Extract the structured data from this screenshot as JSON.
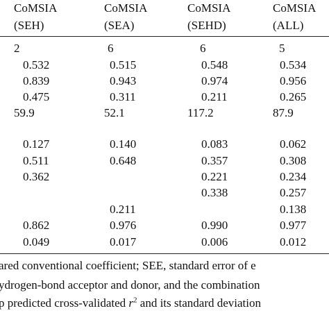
{
  "table": {
    "header": [
      [
        "CoMSIA",
        "(SEH)"
      ],
      [
        "CoMSIA",
        "(SEA)"
      ],
      [
        "CoMSIA",
        "(SEHD)"
      ],
      [
        "CoMSIA",
        "(ALL)"
      ]
    ],
    "rows": [
      [
        "2",
        "6",
        "6",
        "5"
      ],
      [
        "0.532",
        "0.515",
        "0.548",
        "0.534"
      ],
      [
        "0.839",
        "0.943",
        "0.974",
        "0.956"
      ],
      [
        "0.475",
        "0.311",
        "0.211",
        "0.265"
      ],
      [
        "59.9",
        "52.1",
        "117.2",
        "87.9"
      ],
      [
        "0.127",
        "0.140",
        "0.083",
        "0.062"
      ],
      [
        "0.511",
        "0.648",
        "0.357",
        "0.308"
      ],
      [
        "0.362",
        null,
        "0.221",
        "0.234"
      ],
      [
        null,
        null,
        "0.338",
        "0.257"
      ],
      [
        null,
        "0.211",
        null,
        "0.138"
      ],
      [
        "0.862",
        "0.976",
        "0.990",
        "0.977"
      ],
      [
        "0.049",
        "0.017",
        "0.006",
        "0.012"
      ]
    ]
  },
  "footnotes": [
    "ared conventional coefficient; SEE, standard error of e",
    "ydrogen-bond acceptor and donor, and the combination",
    {
      "before": "p predicted cross-validated ",
      "var": "r",
      "sup": "2",
      "after": " and its standard deviation"
    }
  ]
}
